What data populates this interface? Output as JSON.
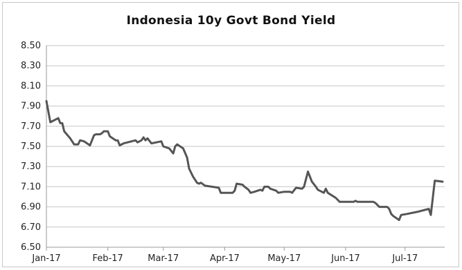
{
  "chart_data": {
    "type": "line",
    "title": "Indonesia 10y Govt Bond Yield",
    "xlabel": "",
    "ylabel": "",
    "ylim": [
      6.5,
      8.5
    ],
    "yticks": [
      "8.50",
      "8.30",
      "8.10",
      "7.90",
      "7.70",
      "7.50",
      "7.30",
      "7.10",
      "6.90",
      "6.70",
      "6.50"
    ],
    "xtick_labels": [
      "Jan-17",
      "Feb-17",
      "Mar-17",
      "Apr-17",
      "May-17",
      "Jun-17",
      "Jul-17"
    ],
    "xtick_dates": [
      "2017-01-01",
      "2017-02-01",
      "2017-03-01",
      "2017-04-01",
      "2017-05-01",
      "2017-06-01",
      "2017-07-01"
    ],
    "xlim": [
      "2017-01-01",
      "2017-07-10"
    ],
    "grid": "horizontal",
    "line_color": "#555555",
    "series": [
      {
        "points": [
          [
            "2017-01-01",
            7.95
          ],
          [
            "2017-01-03",
            7.74
          ],
          [
            "2017-01-06",
            7.77
          ],
          [
            "2017-01-07",
            7.78
          ],
          [
            "2017-01-08",
            7.73
          ],
          [
            "2017-01-09",
            7.73
          ],
          [
            "2017-01-10",
            7.65
          ],
          [
            "2017-01-13",
            7.58
          ],
          [
            "2017-01-14",
            7.55
          ],
          [
            "2017-01-15",
            7.52
          ],
          [
            "2017-01-17",
            7.52
          ],
          [
            "2017-01-18",
            7.56
          ],
          [
            "2017-01-20",
            7.55
          ],
          [
            "2017-01-23",
            7.51
          ],
          [
            "2017-01-24",
            7.56
          ],
          [
            "2017-01-25",
            7.61
          ],
          [
            "2017-01-26",
            7.62
          ],
          [
            "2017-01-28",
            7.62
          ],
          [
            "2017-01-29",
            7.63
          ],
          [
            "2017-01-30",
            7.65
          ],
          [
            "2017-02-01",
            7.65
          ],
          [
            "2017-02-02",
            7.6
          ],
          [
            "2017-02-05",
            7.56
          ],
          [
            "2017-02-06",
            7.56
          ],
          [
            "2017-02-07",
            7.51
          ],
          [
            "2017-02-09",
            7.53
          ],
          [
            "2017-02-13",
            7.55
          ],
          [
            "2017-02-15",
            7.56
          ],
          [
            "2017-02-16",
            7.54
          ],
          [
            "2017-02-18",
            7.56
          ],
          [
            "2017-02-19",
            7.59
          ],
          [
            "2017-02-20",
            7.56
          ],
          [
            "2017-02-21",
            7.58
          ],
          [
            "2017-02-23",
            7.53
          ],
          [
            "2017-02-28",
            7.55
          ],
          [
            "2017-03-01",
            7.5
          ],
          [
            "2017-03-04",
            7.48
          ],
          [
            "2017-03-06",
            7.43
          ],
          [
            "2017-03-07",
            7.5
          ],
          [
            "2017-03-08",
            7.52
          ],
          [
            "2017-03-11",
            7.48
          ],
          [
            "2017-03-13",
            7.39
          ],
          [
            "2017-03-14",
            7.28
          ],
          [
            "2017-03-16",
            7.2
          ],
          [
            "2017-03-18",
            7.14
          ],
          [
            "2017-03-19",
            7.13
          ],
          [
            "2017-03-20",
            7.14
          ],
          [
            "2017-03-22",
            7.11
          ],
          [
            "2017-03-29",
            7.09
          ],
          [
            "2017-03-30",
            7.04
          ],
          [
            "2017-04-05",
            7.04
          ],
          [
            "2017-04-06",
            7.06
          ],
          [
            "2017-04-07",
            7.13
          ],
          [
            "2017-04-10",
            7.12
          ],
          [
            "2017-04-11",
            7.1
          ],
          [
            "2017-04-13",
            7.07
          ],
          [
            "2017-04-14",
            7.04
          ],
          [
            "2017-04-16",
            7.05
          ],
          [
            "2017-04-19",
            7.07
          ],
          [
            "2017-04-20",
            7.06
          ],
          [
            "2017-04-21",
            7.1
          ],
          [
            "2017-04-23",
            7.1
          ],
          [
            "2017-04-24",
            7.08
          ],
          [
            "2017-04-27",
            7.06
          ],
          [
            "2017-04-28",
            7.04
          ],
          [
            "2017-05-01",
            7.05
          ],
          [
            "2017-05-04",
            7.05
          ],
          [
            "2017-05-05",
            7.04
          ],
          [
            "2017-05-07",
            7.09
          ],
          [
            "2017-05-10",
            7.08
          ],
          [
            "2017-05-11",
            7.1
          ],
          [
            "2017-05-13",
            7.25
          ],
          [
            "2017-05-15",
            7.15
          ],
          [
            "2017-05-17",
            7.1
          ],
          [
            "2017-05-18",
            7.07
          ],
          [
            "2017-05-20",
            7.05
          ],
          [
            "2017-05-21",
            7.04
          ],
          [
            "2017-05-22",
            7.08
          ],
          [
            "2017-05-23",
            7.04
          ],
          [
            "2017-05-27",
            6.99
          ],
          [
            "2017-05-29",
            6.95
          ],
          [
            "2017-06-05",
            6.95
          ],
          [
            "2017-06-06",
            6.96
          ],
          [
            "2017-06-07",
            6.95
          ],
          [
            "2017-06-15",
            6.95
          ],
          [
            "2017-06-16",
            6.94
          ],
          [
            "2017-06-18",
            6.9
          ],
          [
            "2017-06-22",
            6.9
          ],
          [
            "2017-06-23",
            6.88
          ],
          [
            "2017-06-24",
            6.83
          ],
          [
            "2017-06-25",
            6.81
          ],
          [
            "2017-06-28",
            6.77
          ],
          [
            "2017-06-29",
            6.82
          ],
          [
            "2017-07-02",
            6.83
          ],
          [
            "2017-07-07",
            6.85
          ],
          [
            "2017-07-13",
            6.88
          ],
          [
            "2017-07-14",
            6.82
          ],
          [
            "2017-07-16",
            7.16
          ],
          [
            "2017-07-20",
            7.15
          ]
        ]
      }
    ]
  }
}
